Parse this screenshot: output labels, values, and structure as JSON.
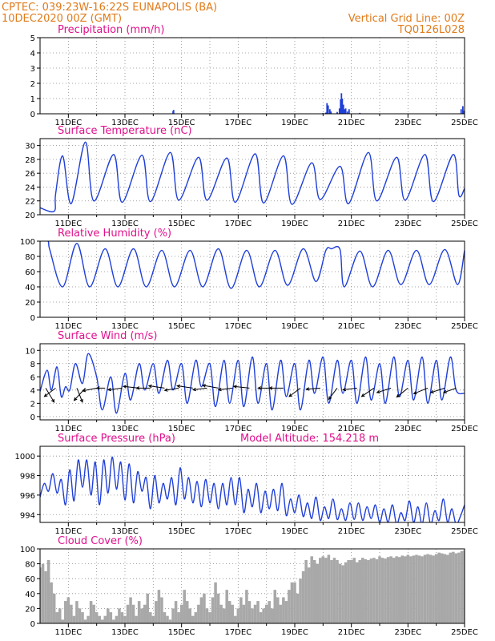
{
  "header": {
    "left_line1": "CPTEC:   039:23W-16:22S   EUNAPOLIS (BA)",
    "left_line2": "10DEC2020 00Z (GMT)",
    "right_line1": "Vertical Grid Line: 00Z",
    "right_line2": "TQ0126L028"
  },
  "x_tick_labels": [
    "11DEC",
    "13DEC",
    "15DEC",
    "17DEC",
    "19DEC",
    "21DEC",
    "23DEC",
    "25DEC"
  ],
  "colors": {
    "series": "#1f3fd8",
    "title": "#e0108c",
    "header": "#e07b1a",
    "cloud": "#a8a8a8"
  },
  "chart_data": [
    {
      "type": "bar",
      "title": "Precipitation (mm/h)",
      "ylim": [
        0,
        5
      ],
      "yticks": [
        0,
        1,
        2,
        3,
        4,
        5
      ],
      "x_unit": "days since 10DEC2020 00Z",
      "bars": [
        [
          4.7,
          0.18
        ],
        [
          4.72,
          0.25
        ],
        [
          10.0,
          0.05
        ],
        [
          10.1,
          0.08
        ],
        [
          10.14,
          0.7
        ],
        [
          10.18,
          0.55
        ],
        [
          10.24,
          0.3
        ],
        [
          10.28,
          0.15
        ],
        [
          10.5,
          0.12
        ],
        [
          10.58,
          0.35
        ],
        [
          10.62,
          0.95
        ],
        [
          10.65,
          1.35
        ],
        [
          10.68,
          1.0
        ],
        [
          10.72,
          0.6
        ],
        [
          10.76,
          0.3
        ],
        [
          10.8,
          0.35
        ],
        [
          10.86,
          0.15
        ],
        [
          10.92,
          0.3
        ],
        [
          11.3,
          0.06
        ],
        [
          14.88,
          0.3
        ],
        [
          14.94,
          0.5
        ],
        [
          14.98,
          0.2
        ]
      ]
    },
    {
      "type": "line",
      "title": "Surface Temperature (nC)",
      "ylim": [
        20,
        31
      ],
      "yticks": [
        20,
        22,
        24,
        26,
        28,
        30
      ],
      "x_unit": "days since 10DEC2020 00Z",
      "x": [
        0.0,
        0.5,
        0.55,
        0.8,
        1.1,
        1.6,
        1.9,
        2.6,
        2.9,
        3.6,
        3.9,
        4.6,
        4.9,
        5.6,
        5.9,
        6.6,
        6.9,
        7.6,
        7.9,
        8.6,
        8.9,
        9.6,
        9.9,
        10.6,
        10.9,
        11.6,
        11.9,
        12.6,
        12.9,
        13.6,
        13.9,
        14.6,
        14.8,
        15.0
      ],
      "y": [
        21.0,
        20.5,
        23.0,
        28.5,
        21.6,
        30.5,
        22.0,
        28.7,
        21.8,
        28.6,
        21.9,
        29.0,
        22.1,
        28.3,
        22.1,
        28.2,
        21.8,
        28.8,
        21.7,
        28.5,
        21.5,
        27.5,
        22.2,
        27.0,
        21.6,
        29.0,
        22.0,
        28.3,
        22.1,
        28.7,
        21.9,
        28.7,
        22.8,
        23.8
      ]
    },
    {
      "type": "line",
      "title": "Relative Humidity (%)",
      "ylim": [
        0,
        100
      ],
      "yticks": [
        0,
        20,
        40,
        60,
        80,
        100
      ],
      "x_unit": "days since 10DEC2020 00Z",
      "x": [
        0.0,
        0.28,
        0.35,
        0.8,
        1.3,
        1.75,
        2.3,
        2.75,
        3.3,
        3.75,
        4.3,
        4.75,
        5.3,
        5.75,
        6.3,
        6.75,
        7.3,
        7.75,
        8.3,
        8.75,
        9.3,
        9.75,
        10.1,
        10.3,
        10.6,
        10.75,
        11.3,
        11.75,
        12.3,
        12.75,
        13.3,
        13.75,
        14.3,
        14.75,
        15.0
      ],
      "y": [
        100,
        100,
        88,
        40,
        97,
        40,
        90,
        40,
        90,
        40,
        88,
        40,
        88,
        40,
        90,
        38,
        88,
        40,
        88,
        42,
        90,
        47,
        88,
        90,
        89,
        40,
        87,
        40,
        88,
        43,
        88,
        43,
        89,
        43,
        88
      ]
    },
    {
      "type": "line",
      "title": "Surface Wind (m/s)",
      "ylim": [
        -0.5,
        11
      ],
      "yticks": [
        0,
        2,
        4,
        6,
        8,
        10
      ],
      "x_unit": "days since 10DEC2020 00Z",
      "x": [
        0.0,
        0.25,
        0.4,
        0.6,
        0.75,
        0.9,
        1.05,
        1.25,
        1.5,
        1.7,
        2.0,
        2.2,
        2.5,
        2.7,
        3.0,
        3.2,
        3.5,
        3.7,
        4.0,
        4.2,
        4.5,
        4.7,
        5.0,
        5.2,
        5.5,
        5.7,
        6.0,
        6.2,
        6.5,
        6.7,
        7.0,
        7.2,
        7.5,
        7.7,
        8.0,
        8.2,
        8.5,
        8.7,
        9.0,
        9.2,
        9.5,
        9.7,
        10.0,
        10.2,
        10.5,
        10.7,
        11.0,
        11.2,
        11.5,
        11.7,
        12.0,
        12.2,
        12.5,
        12.7,
        13.0,
        13.2,
        13.5,
        13.7,
        14.0,
        14.2,
        14.5,
        14.7,
        15.0
      ],
      "y": [
        3.8,
        7.0,
        4.0,
        7.5,
        3.0,
        4.5,
        4.0,
        8.0,
        5.0,
        9.5,
        6.0,
        1.0,
        6.0,
        0.5,
        6.5,
        2.5,
        8.0,
        4.0,
        8.0,
        3.5,
        8.5,
        4.0,
        8.0,
        2.0,
        8.5,
        4.5,
        8.0,
        1.5,
        8.5,
        2.0,
        8.5,
        1.5,
        9.0,
        2.0,
        8.0,
        1.0,
        8.5,
        3.0,
        8.0,
        1.0,
        8.5,
        3.5,
        9.0,
        2.0,
        8.5,
        3.5,
        8.5,
        2.0,
        9.0,
        2.5,
        8.0,
        2.0,
        9.0,
        3.0,
        8.5,
        2.5,
        9.0,
        2.0,
        8.5,
        2.5,
        9.0,
        4.0,
        3.5
      ],
      "vectors": [
        [
          0.2,
          -1.5,
          2.5
        ],
        [
          0.55,
          2.0,
          1.5
        ],
        [
          1.3,
          -1.0,
          2.5
        ],
        [
          1.6,
          2.0,
          2.2
        ],
        [
          2.0,
          2.5,
          0.5
        ],
        [
          2.3,
          1.5,
          0.0
        ],
        [
          2.9,
          2.5,
          0.3
        ],
        [
          3.5,
          2.8,
          -0.3
        ],
        [
          3.9,
          2.5,
          0.0
        ],
        [
          4.4,
          2.8,
          -0.4
        ],
        [
          4.9,
          2.5,
          0.4
        ],
        [
          5.4,
          2.8,
          -0.4
        ],
        [
          5.9,
          2.5,
          0.3
        ],
        [
          6.3,
          2.8,
          -0.5
        ],
        [
          6.8,
          2.5,
          0.3
        ],
        [
          7.4,
          2.8,
          -0.3
        ],
        [
          8.2,
          2.5,
          0.0
        ],
        [
          8.6,
          2.5,
          0.0
        ],
        [
          9.2,
          2.0,
          1.5
        ],
        [
          9.9,
          2.5,
          0.2
        ],
        [
          10.5,
          1.5,
          2.0
        ],
        [
          11.2,
          2.5,
          0.3
        ],
        [
          11.8,
          2.2,
          1.5
        ],
        [
          12.4,
          2.5,
          0.8
        ],
        [
          13.0,
          2.0,
          1.6
        ],
        [
          13.7,
          2.5,
          1.0
        ],
        [
          14.3,
          2.5,
          0.8
        ],
        [
          14.7,
          2.2,
          0.8
        ]
      ]
    },
    {
      "type": "line",
      "title": "Surface Pressure (hPa)",
      "annotation": "Model Altitude: 154.218 m",
      "ylim": [
        993.2,
        1001
      ],
      "yticks": [
        994,
        996,
        998,
        1000
      ],
      "x_unit": "days since 10DEC2020 00Z",
      "x": [
        0.0,
        0.15,
        0.3,
        0.45,
        0.6,
        0.75,
        0.9,
        1.05,
        1.2,
        1.35,
        1.5,
        1.65,
        1.8,
        1.95,
        2.1,
        2.25,
        2.4,
        2.55,
        2.7,
        2.85,
        3.0,
        3.15,
        3.3,
        3.45,
        3.6,
        3.75,
        3.9,
        4.05,
        4.2,
        4.35,
        4.5,
        4.65,
        4.8,
        4.95,
        5.1,
        5.25,
        5.4,
        5.55,
        5.7,
        5.85,
        6.0,
        6.15,
        6.3,
        6.45,
        6.6,
        6.75,
        6.9,
        7.05,
        7.2,
        7.35,
        7.5,
        7.65,
        7.8,
        7.95,
        8.1,
        8.25,
        8.4,
        8.55,
        8.7,
        8.85,
        9.0,
        9.15,
        9.3,
        9.45,
        9.6,
        9.75,
        9.9,
        10.05,
        10.2,
        10.35,
        10.5,
        10.65,
        10.8,
        10.95,
        11.1,
        11.25,
        11.4,
        11.55,
        11.7,
        11.85,
        12.0,
        12.15,
        12.3,
        12.45,
        12.6,
        12.75,
        12.9,
        13.05,
        13.2,
        13.35,
        13.5,
        13.65,
        13.8,
        13.95,
        14.1,
        14.25,
        14.4,
        14.55,
        14.7,
        14.85,
        15.0
      ],
      "y": [
        995.8,
        997.2,
        996.4,
        998.2,
        996.2,
        997.6,
        995.0,
        998.6,
        995.4,
        999.6,
        996.8,
        999.6,
        996.0,
        999.4,
        995.0,
        999.6,
        996.2,
        999.9,
        996.6,
        999.4,
        995.5,
        999.2,
        995.2,
        998.4,
        996.4,
        997.8,
        994.6,
        998.0,
        995.2,
        997.2,
        995.6,
        997.8,
        995.0,
        998.8,
        995.6,
        997.8,
        995.2,
        997.4,
        994.8,
        997.6,
        995.2,
        997.2,
        994.6,
        997.2,
        995.0,
        997.8,
        995.0,
        997.8,
        994.2,
        996.6,
        994.8,
        997.2,
        994.2,
        996.4,
        994.6,
        996.6,
        994.4,
        997.2,
        993.9,
        995.6,
        994.2,
        996.0,
        993.8,
        995.2,
        993.6,
        995.8,
        993.4,
        994.8,
        993.6,
        995.6,
        993.5,
        994.6,
        993.4,
        995.2,
        993.5,
        995.2,
        993.4,
        994.8,
        993.6,
        995.0,
        993.2,
        994.6,
        993.2,
        995.0,
        993.0,
        994.2,
        993.4,
        995.4,
        993.2,
        994.8,
        993.0,
        995.2,
        993.0,
        994.4,
        993.4,
        995.6,
        993.2,
        994.6,
        993.0,
        993.8,
        995.0
      ]
    },
    {
      "type": "area",
      "title": "Cloud Cover (%)",
      "ylim": [
        0,
        100
      ],
      "yticks": [
        0,
        20,
        40,
        60,
        80,
        100
      ],
      "x_unit": "days since 10DEC2020 00Z",
      "x": [
        0.0,
        0.1,
        0.2,
        0.3,
        0.4,
        0.5,
        0.6,
        0.7,
        0.8,
        0.9,
        1.0,
        1.1,
        1.2,
        1.3,
        1.4,
        1.5,
        1.6,
        1.7,
        1.8,
        1.9,
        2.0,
        2.1,
        2.2,
        2.3,
        2.4,
        2.5,
        2.6,
        2.7,
        2.8,
        2.9,
        3.0,
        3.1,
        3.2,
        3.3,
        3.4,
        3.5,
        3.6,
        3.7,
        3.8,
        3.9,
        4.0,
        4.1,
        4.2,
        4.3,
        4.4,
        4.5,
        4.6,
        4.7,
        4.8,
        4.9,
        5.0,
        5.1,
        5.2,
        5.3,
        5.4,
        5.5,
        5.6,
        5.7,
        5.8,
        5.9,
        6.0,
        6.1,
        6.2,
        6.3,
        6.4,
        6.5,
        6.6,
        6.7,
        6.8,
        6.9,
        7.0,
        7.1,
        7.2,
        7.3,
        7.4,
        7.5,
        7.6,
        7.7,
        7.8,
        7.9,
        8.0,
        8.1,
        8.2,
        8.3,
        8.4,
        8.5,
        8.6,
        8.7,
        8.8,
        8.9,
        9.0,
        9.1,
        9.2,
        9.3,
        9.4,
        9.5,
        9.6,
        9.7,
        9.8,
        9.9,
        10.0,
        10.1,
        10.2,
        10.3,
        10.4,
        10.5,
        10.6,
        10.7,
        10.8,
        10.9,
        11.0,
        11.1,
        11.2,
        11.3,
        11.4,
        11.5,
        11.6,
        11.7,
        11.8,
        11.9,
        12.0,
        12.1,
        12.2,
        12.3,
        12.4,
        12.5,
        12.6,
        12.7,
        12.8,
        12.9,
        13.0,
        13.1,
        13.2,
        13.3,
        13.4,
        13.5,
        13.6,
        13.7,
        13.8,
        13.9,
        14.0,
        14.1,
        14.2,
        14.3,
        14.4,
        14.5,
        14.6,
        14.7,
        14.8,
        14.9,
        15.0
      ],
      "y": [
        75,
        80,
        70,
        85,
        55,
        40,
        15,
        20,
        5,
        30,
        35,
        25,
        10,
        30,
        20,
        15,
        5,
        10,
        30,
        25,
        15,
        10,
        5,
        10,
        20,
        15,
        5,
        10,
        20,
        15,
        10,
        25,
        35,
        25,
        10,
        30,
        20,
        25,
        40,
        15,
        10,
        30,
        45,
        35,
        15,
        10,
        5,
        20,
        30,
        15,
        25,
        45,
        30,
        20,
        10,
        15,
        25,
        35,
        40,
        20,
        15,
        35,
        55,
        40,
        25,
        20,
        45,
        30,
        25,
        10,
        20,
        35,
        25,
        45,
        30,
        20,
        25,
        30,
        15,
        20,
        25,
        30,
        20,
        45,
        35,
        25,
        35,
        30,
        45,
        55,
        55,
        40,
        60,
        70,
        85,
        75,
        90,
        85,
        80,
        88,
        90,
        88,
        92,
        85,
        88,
        85,
        80,
        78,
        82,
        85,
        85,
        88,
        82,
        85,
        88,
        86,
        85,
        87,
        88,
        86,
        90,
        88,
        87,
        89,
        90,
        88,
        90,
        89,
        91,
        90,
        92,
        90,
        91,
        92,
        91,
        90,
        92,
        93,
        92,
        91,
        93,
        95,
        94,
        93,
        92,
        95,
        96,
        94,
        95,
        97,
        98
      ]
    }
  ]
}
